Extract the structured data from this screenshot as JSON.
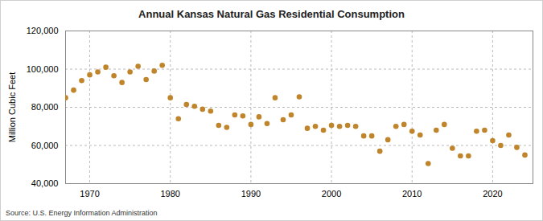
{
  "chart_data": {
    "type": "scatter",
    "title": "Annual Kansas Natural Gas Residential Consumption",
    "y_label": "Million Cubic Feet",
    "source": "Source: U.S. Energy Information Administration",
    "x": [
      1967,
      1968,
      1969,
      1970,
      1971,
      1972,
      1973,
      1974,
      1975,
      1976,
      1977,
      1978,
      1979,
      1980,
      1981,
      1982,
      1983,
      1984,
      1985,
      1986,
      1987,
      1988,
      1989,
      1990,
      1991,
      1992,
      1993,
      1994,
      1995,
      1996,
      1997,
      1998,
      1999,
      2000,
      2001,
      2002,
      2003,
      2004,
      2005,
      2006,
      2007,
      2008,
      2009,
      2010,
      2011,
      2012,
      2013,
      2014,
      2015,
      2016,
      2017,
      2018,
      2019,
      2020,
      2021,
      2022,
      2023,
      2024
    ],
    "values": [
      85000,
      89000,
      94000,
      97000,
      98500,
      101000,
      96500,
      93000,
      98500,
      101500,
      94500,
      99000,
      102000,
      85000,
      74000,
      81500,
      80500,
      79000,
      78000,
      70500,
      69500,
      76000,
      75500,
      71000,
      75000,
      71500,
      85000,
      73500,
      76000,
      85500,
      69000,
      70000,
      68000,
      70500,
      70000,
      70500,
      70000,
      65000,
      65000,
      57000,
      63000,
      70000,
      71000,
      67500,
      65500,
      50500,
      68000,
      71000,
      58500,
      54500,
      54500,
      67500,
      68000,
      62500,
      60000,
      65500,
      59000,
      55000
    ],
    "color": "#c0852a",
    "marker": "circle",
    "xlim": [
      1967,
      2025
    ],
    "xticks": [
      1970,
      1980,
      1990,
      2000,
      2010,
      2020
    ],
    "ylim": [
      40000,
      120000
    ],
    "yticks": [
      {
        "value": 40000,
        "label": "40,000"
      },
      {
        "value": 60000,
        "label": "60,000"
      },
      {
        "value": 80000,
        "label": "80,000"
      },
      {
        "value": 100000,
        "label": "100,000"
      },
      {
        "value": 120000,
        "label": "120,000"
      }
    ],
    "grid": true
  }
}
